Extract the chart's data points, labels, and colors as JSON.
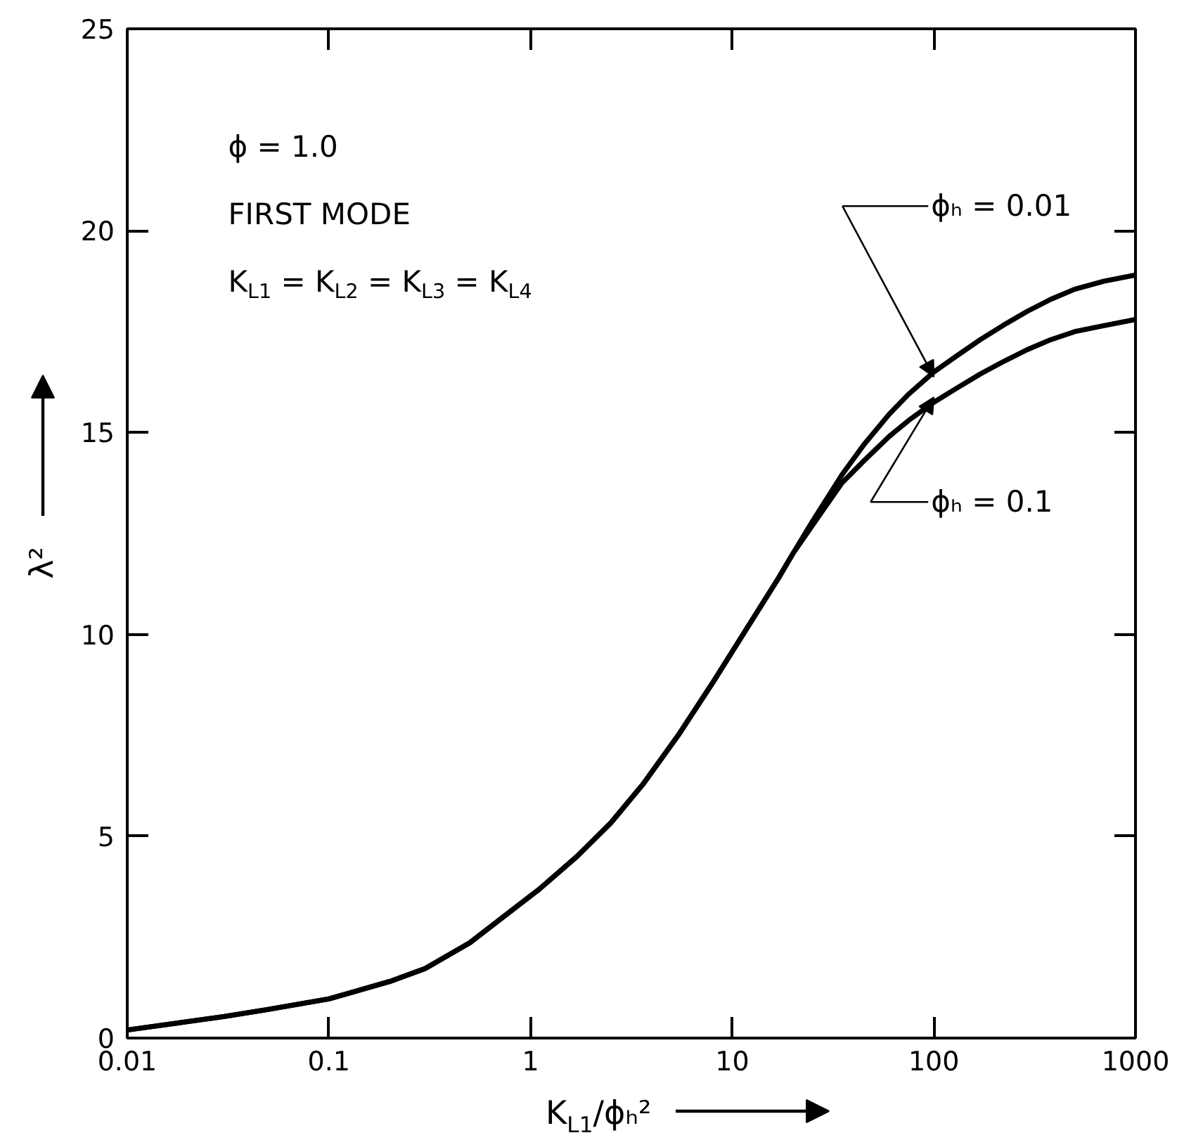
{
  "chart_data": {
    "type": "line",
    "xlabel": "K$_{L1}$/ϕₕ²",
    "ylabel": "λ²",
    "annotations": [
      "ϕ = 1.0",
      "FIRST MODE",
      "K$_{L1}$ = K$_{L2}$ = K$_{L3}$ = K$_{L4}$"
    ],
    "log": "x",
    "line_style": "solid",
    "legend": "top right",
    "x": [
      0.01,
      0.02,
      0.03,
      0.05,
      0.1,
      0.2,
      0.3,
      0.5,
      0.8,
      1.1,
      1.7,
      2.5,
      3.6,
      5.4,
      8,
      12,
      17,
      20,
      25,
      35,
      45,
      60,
      75,
      100,
      130,
      170,
      220,
      290,
      380,
      500,
      700,
      1000
    ],
    "series": [
      {
        "name": "ϕₕ = 0.01",
        "color": "#000000",
        "values": [
          0.2,
          0.41,
          0.53,
          0.71,
          0.97,
          1.4,
          1.72,
          2.36,
          3.15,
          3.68,
          4.5,
          5.33,
          6.28,
          7.5,
          8.8,
          10.2,
          11.4,
          12.0,
          12.8,
          13.95,
          14.7,
          15.45,
          15.95,
          16.5,
          16.9,
          17.3,
          17.65,
          18.0,
          18.3,
          18.55,
          18.75,
          18.9
        ]
      },
      {
        "name": "ϕₕ = 0.1",
        "color": "#000000",
        "values": [
          0.2,
          0.41,
          0.53,
          0.71,
          0.97,
          1.4,
          1.72,
          2.36,
          3.15,
          3.68,
          4.5,
          5.33,
          6.28,
          7.5,
          8.8,
          10.2,
          11.4,
          12.0,
          12.7,
          13.75,
          14.3,
          14.9,
          15.3,
          15.75,
          16.1,
          16.45,
          16.75,
          17.05,
          17.3,
          17.5,
          17.65,
          17.8
        ]
      }
    ],
    "xlim": [
      0.01,
      1000
    ],
    "ylim": [
      0,
      25
    ],
    "xticks": [
      0.01,
      0.1,
      1,
      10,
      100,
      1000
    ],
    "yticks": [
      0,
      5,
      10,
      15,
      20,
      25
    ]
  }
}
